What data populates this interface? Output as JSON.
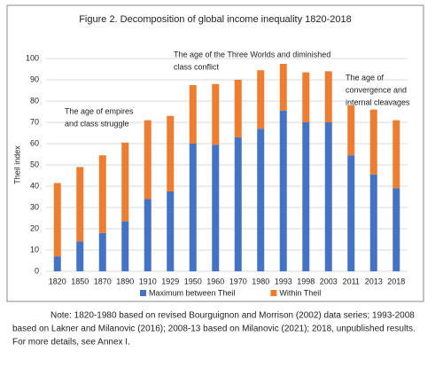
{
  "chart_data": {
    "type": "stacked_bar",
    "title": "Figure 2. Decomposition of global income inequality 1820-2018",
    "y_label": "Theil index",
    "categories": [
      "1820",
      "1850",
      "1870",
      "1890",
      "1910",
      "1929",
      "1950",
      "1960",
      "1970",
      "1980",
      "1993",
      "1998",
      "2003",
      "2011",
      "2013",
      "2018"
    ],
    "series": [
      {
        "name": "Maximum between Theil",
        "color": "#4472c4",
        "values": [
          7,
          14,
          18,
          23.5,
          34,
          37.5,
          60,
          59.5,
          63,
          67,
          75.5,
          70,
          70,
          54.5,
          45.5,
          39
        ]
      },
      {
        "name": "Within Theil",
        "color": "#ed7d31",
        "values": [
          34.5,
          35,
          36.5,
          37,
          37,
          35.5,
          27.5,
          28.5,
          27,
          27.5,
          22,
          23.5,
          24,
          23.5,
          30.5,
          32
        ]
      }
    ],
    "ylim": [
      0,
      100
    ],
    "yticks": [
      0,
      10,
      20,
      30,
      40,
      50,
      60,
      70,
      80,
      90,
      100
    ],
    "grid": true,
    "legend": "bottom",
    "annotations": [
      [
        "The age of empires",
        "and class struggle"
      ],
      [
        "The age of the Three Worlds  and diminished",
        "class conflict"
      ],
      [
        "The age of",
        "convergence and",
        "internal cleavages"
      ]
    ]
  },
  "note": [
    "Note: 1820-1980 based on revised Bourguignon and Morrison (2002) data series; 1993-2008",
    "based on Lakner and Milanovic (2016); 2008-13 based on Milanovic (2021); 2018, unpublished results.",
    "For more details, see  Annex I."
  ]
}
